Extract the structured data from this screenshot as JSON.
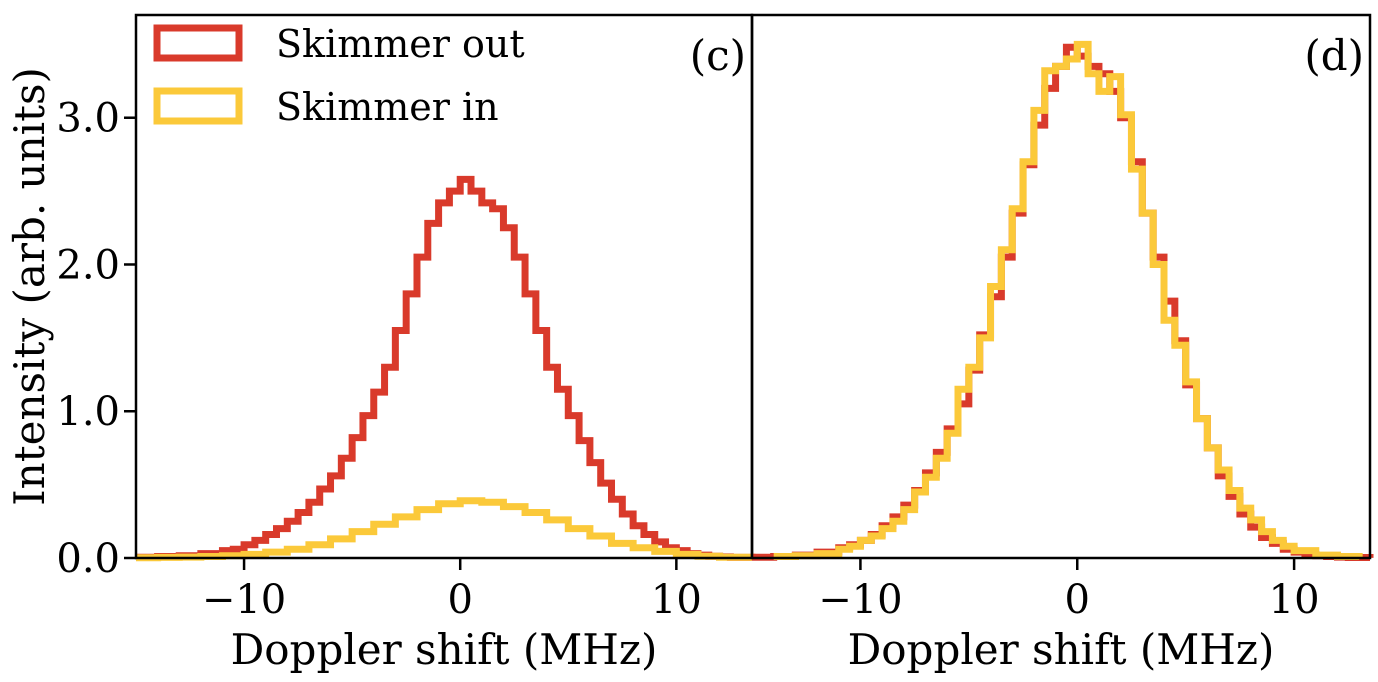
{
  "chart_data": [
    {
      "type": "line",
      "panel_label": "(c)",
      "xlabel": "Doppler shift (MHz)",
      "ylabel": "Intensity (arb. units)",
      "xlim": [
        -15,
        13.5
      ],
      "ylim": [
        0,
        3.7
      ],
      "xticks": [
        -10,
        0,
        10
      ],
      "xtick_labels": [
        "−10",
        "0",
        "10"
      ],
      "yticks": [
        0,
        1,
        2,
        3
      ],
      "ytick_labels": [
        "0.0",
        "1.0",
        "2.0",
        "3.0"
      ],
      "grid": false,
      "legend_position": "top-left",
      "series": [
        {
          "name": "Skimmer out",
          "color": "#d93a2b",
          "x": [
            -15,
            -14,
            -13,
            -12,
            -11,
            -10.5,
            -10,
            -9.5,
            -9,
            -8.5,
            -8,
            -7.5,
            -7,
            -6.5,
            -6,
            -5.5,
            -5,
            -4.5,
            -4,
            -3.5,
            -3,
            -2.5,
            -2,
            -1.5,
            -1,
            -0.5,
            0,
            0.5,
            1,
            1.5,
            2,
            2.5,
            3,
            3.5,
            4,
            4.5,
            5,
            5.5,
            6,
            6.5,
            7,
            7.5,
            8,
            8.5,
            9,
            9.5,
            10,
            10.5,
            11,
            11.5,
            12,
            12.5,
            13.5
          ],
          "y": [
            0.005,
            0.01,
            0.015,
            0.03,
            0.05,
            0.06,
            0.09,
            0.12,
            0.16,
            0.2,
            0.25,
            0.31,
            0.38,
            0.47,
            0.56,
            0.68,
            0.82,
            0.97,
            1.13,
            1.3,
            1.55,
            1.8,
            2.05,
            2.28,
            2.42,
            2.5,
            2.58,
            2.5,
            2.42,
            2.38,
            2.25,
            2.05,
            1.8,
            1.55,
            1.3,
            1.15,
            0.97,
            0.8,
            0.65,
            0.51,
            0.4,
            0.3,
            0.22,
            0.16,
            0.11,
            0.07,
            0.05,
            0.03,
            0.02,
            0.012,
            0.008,
            0.004,
            0.002
          ]
        },
        {
          "name": "Skimmer in",
          "color": "#fbc93a",
          "x": [
            -15,
            -14,
            -13,
            -12,
            -11,
            -10,
            -9,
            -8,
            -7,
            -6,
            -5,
            -4,
            -3,
            -2,
            -1,
            0,
            1,
            2,
            3,
            4,
            5,
            6,
            7,
            8,
            9,
            10,
            11,
            12,
            13.5
          ],
          "y": [
            0.002,
            0.004,
            0.006,
            0.01,
            0.015,
            0.025,
            0.04,
            0.06,
            0.09,
            0.13,
            0.18,
            0.23,
            0.28,
            0.33,
            0.37,
            0.39,
            0.38,
            0.35,
            0.31,
            0.26,
            0.2,
            0.15,
            0.1,
            0.07,
            0.045,
            0.025,
            0.012,
            0.005,
            0.002
          ]
        }
      ]
    },
    {
      "type": "line",
      "panel_label": "(d)",
      "xlabel": "Doppler shift (MHz)",
      "ylabel": "",
      "xlim": [
        -15,
        13.5
      ],
      "ylim": [
        0,
        3.7
      ],
      "xticks": [
        -10,
        0,
        10
      ],
      "xtick_labels": [
        "−10",
        "0",
        "10"
      ],
      "grid": false,
      "series": [
        {
          "name": "Skimmer out",
          "color": "#d93a2b",
          "x": [
            -15,
            -14,
            -13,
            -12,
            -11,
            -10.5,
            -10,
            -9.5,
            -9,
            -8.5,
            -8,
            -7.5,
            -7,
            -6.5,
            -6,
            -5.5,
            -5,
            -4.5,
            -4,
            -3.5,
            -3,
            -2.5,
            -2,
            -1.5,
            -1,
            -0.5,
            0,
            0.5,
            1,
            1.5,
            2,
            2.5,
            3,
            3.5,
            4,
            4.5,
            5,
            5.5,
            6,
            6.5,
            7,
            7.5,
            8,
            8.5,
            9,
            9.5,
            10,
            10.5,
            11,
            11.5,
            12,
            12.5,
            13.5
          ],
          "y": [
            0.005,
            0.01,
            0.02,
            0.04,
            0.07,
            0.09,
            0.12,
            0.16,
            0.22,
            0.28,
            0.36,
            0.46,
            0.58,
            0.72,
            0.88,
            1.05,
            1.28,
            1.52,
            1.78,
            2.05,
            2.35,
            2.68,
            2.95,
            3.2,
            3.35,
            3.48,
            3.42,
            3.35,
            3.3,
            3.18,
            3.0,
            2.7,
            2.35,
            2.05,
            1.75,
            1.48,
            1.18,
            0.95,
            0.75,
            0.56,
            0.42,
            0.3,
            0.21,
            0.14,
            0.1,
            0.06,
            0.04,
            0.025,
            0.015,
            0.01,
            0.006,
            0.003,
            0.001
          ]
        },
        {
          "name": "Skimmer in",
          "color": "#fbc93a",
          "x": [
            -14,
            -13,
            -12,
            -11,
            -10.5,
            -10,
            -9.5,
            -9,
            -8.5,
            -8,
            -7.5,
            -7,
            -6.5,
            -6,
            -5.5,
            -5,
            -4.5,
            -4,
            -3.5,
            -3,
            -2.5,
            -2,
            -1.5,
            -1,
            -0.5,
            0,
            0.5,
            1,
            1.5,
            2,
            2.5,
            3,
            3.5,
            4,
            4.5,
            5,
            5.5,
            6,
            6.5,
            7,
            7.5,
            8,
            8.5,
            9,
            9.5,
            10,
            11,
            12,
            13
          ],
          "y": [
            0.01,
            0.015,
            0.03,
            0.06,
            0.08,
            0.12,
            0.15,
            0.2,
            0.25,
            0.33,
            0.45,
            0.55,
            0.68,
            0.85,
            1.15,
            1.3,
            1.5,
            1.85,
            2.1,
            2.38,
            2.7,
            3.05,
            3.32,
            3.35,
            3.4,
            3.5,
            3.3,
            3.18,
            3.28,
            3.02,
            2.65,
            2.35,
            2.0,
            1.62,
            1.45,
            1.2,
            0.95,
            0.75,
            0.6,
            0.46,
            0.34,
            0.26,
            0.18,
            0.12,
            0.08,
            0.05,
            0.02,
            0.01,
            0.005
          ]
        }
      ]
    }
  ]
}
